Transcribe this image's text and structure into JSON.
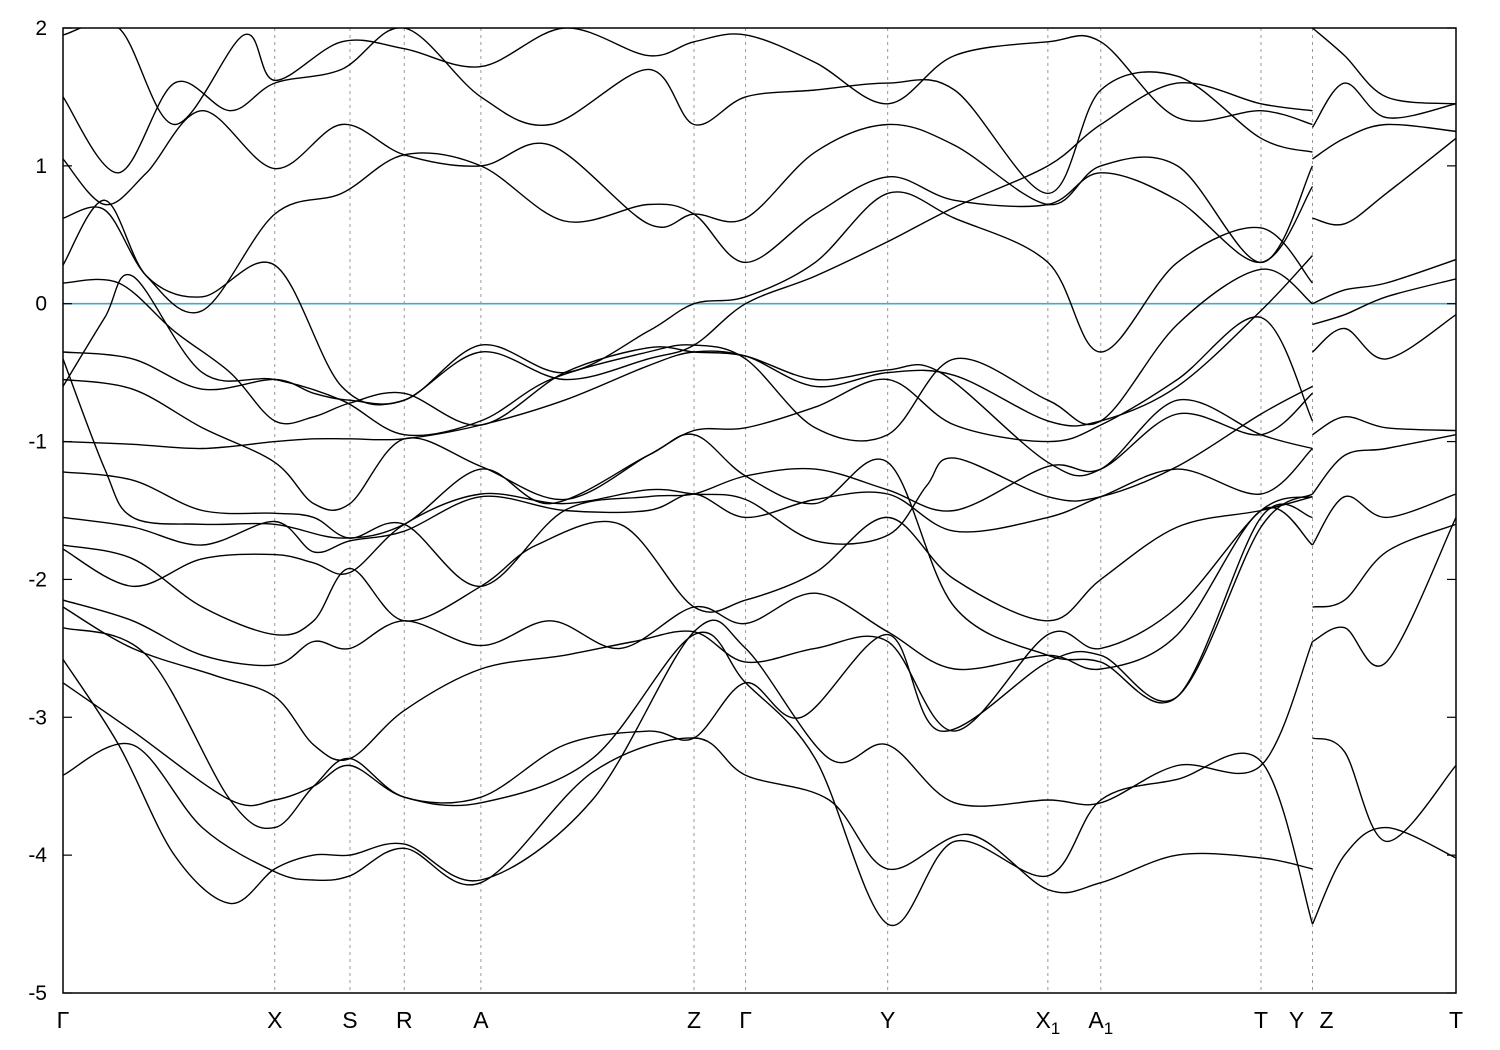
{
  "chart_data": {
    "type": "line",
    "title": "",
    "xlabel": "",
    "ylabel": "",
    "ylim": [
      -5,
      2
    ],
    "yticks": [
      -5,
      -4,
      -3,
      -2,
      -1,
      0,
      1,
      2
    ],
    "ytick_labels": [
      "-5",
      "-4",
      "-3",
      "-2",
      "-1",
      "0",
      "1",
      "2"
    ],
    "x_range": [
      0,
      1
    ],
    "high_symmetry_points": [
      {
        "label": "Γ",
        "sub": "",
        "x": 0.0,
        "line": false
      },
      {
        "label": "X",
        "sub": "",
        "x": 0.152,
        "line": true
      },
      {
        "label": "S",
        "sub": "",
        "x": 0.206,
        "line": true
      },
      {
        "label": "R",
        "sub": "",
        "x": 0.245,
        "line": true
      },
      {
        "label": "A",
        "sub": "",
        "x": 0.3,
        "line": true
      },
      {
        "label": "Z",
        "sub": "",
        "x": 0.453,
        "line": true
      },
      {
        "label": "Γ",
        "sub": "",
        "x": 0.49,
        "line": true
      },
      {
        "label": "Y",
        "sub": "",
        "x": 0.592,
        "line": true
      },
      {
        "label": "X",
        "sub": "1",
        "x": 0.707,
        "line": true
      },
      {
        "label": "A",
        "sub": "1",
        "x": 0.745,
        "line": true
      },
      {
        "label": "T",
        "sub": "",
        "x": 0.86,
        "line": true
      },
      {
        "label": "Y",
        "sub": "",
        "x": 0.897,
        "line": true
      },
      {
        "label": "Z",
        "sub": "",
        "x": 0.897,
        "line": false
      },
      {
        "label": "T",
        "sub": "",
        "x": 1.0,
        "line": false
      }
    ],
    "fermi_level": 0,
    "fermi_color": "#4aa8c0",
    "band_color": "#000000",
    "series": [
      {
        "x": [
          0.0,
          0.05,
          0.1,
          0.152,
          0.18,
          0.206,
          0.245,
          0.3,
          0.38,
          0.453,
          0.49,
          0.55,
          0.592,
          0.65,
          0.707,
          0.745,
          0.8,
          0.86,
          0.897
        ],
        "y": [
          -3.42,
          -3.2,
          -3.8,
          -4.12,
          -4.18,
          -4.15,
          -3.95,
          -4.2,
          -3.4,
          -3.15,
          -3.42,
          -3.6,
          -4.1,
          -3.85,
          -4.25,
          -4.2,
          -4.0,
          -4.02,
          -4.1
        ]
      },
      {
        "x": [
          0.0,
          0.05,
          0.12,
          0.152,
          0.18,
          0.206,
          0.245,
          0.3,
          0.38,
          0.453,
          0.49,
          0.54,
          0.592,
          0.64,
          0.707,
          0.745,
          0.8,
          0.86,
          0.897
        ],
        "y": [
          -2.75,
          -3.1,
          -3.6,
          -3.6,
          -3.5,
          -3.35,
          -3.58,
          -3.62,
          -3.3,
          -2.4,
          -2.75,
          -3.3,
          -4.5,
          -3.9,
          -4.15,
          -3.6,
          -3.45,
          -3.32,
          -4.5
        ]
      },
      {
        "x": [
          0.0,
          0.04,
          0.08,
          0.12,
          0.152,
          0.18,
          0.206,
          0.245,
          0.3,
          0.38,
          0.453,
          0.49,
          0.55,
          0.592,
          0.64,
          0.707,
          0.745,
          0.8,
          0.86,
          0.897
        ],
        "y": [
          -2.58,
          -3.2,
          -4.0,
          -4.35,
          -4.1,
          -4.0,
          -4.0,
          -3.92,
          -4.18,
          -3.6,
          -2.38,
          -2.5,
          -3.3,
          -3.2,
          -3.62,
          -3.6,
          -3.62,
          -3.35,
          -3.35,
          -2.45
        ]
      },
      {
        "x": [
          0.0,
          0.06,
          0.12,
          0.152,
          0.18,
          0.206,
          0.245,
          0.3,
          0.36,
          0.42,
          0.453,
          0.49,
          0.53,
          0.592,
          0.63,
          0.707,
          0.745,
          0.8,
          0.86,
          0.897
        ],
        "y": [
          -2.35,
          -2.55,
          -3.6,
          -3.8,
          -3.5,
          -3.3,
          -3.58,
          -3.58,
          -3.2,
          -3.1,
          -3.15,
          -2.75,
          -3.0,
          -2.4,
          -3.1,
          -2.6,
          -2.55,
          -2.85,
          -1.62,
          -1.38
        ]
      },
      {
        "x": [
          0.0,
          0.05,
          0.11,
          0.152,
          0.18,
          0.206,
          0.245,
          0.3,
          0.36,
          0.41,
          0.453,
          0.49,
          0.54,
          0.592,
          0.64,
          0.707,
          0.745,
          0.8,
          0.86,
          0.897
        ],
        "y": [
          -2.2,
          -2.5,
          -2.7,
          -2.85,
          -3.2,
          -3.3,
          -2.95,
          -2.65,
          -2.55,
          -2.45,
          -2.38,
          -2.6,
          -2.5,
          -2.45,
          -3.1,
          -2.4,
          -2.5,
          -2.2,
          -1.5,
          -1.4
        ]
      },
      {
        "x": [
          0.0,
          0.05,
          0.1,
          0.152,
          0.18,
          0.206,
          0.245,
          0.3,
          0.35,
          0.4,
          0.453,
          0.49,
          0.54,
          0.592,
          0.64,
          0.707,
          0.745,
          0.8,
          0.86,
          0.897
        ],
        "y": [
          -2.15,
          -2.3,
          -2.55,
          -2.62,
          -2.45,
          -2.5,
          -2.3,
          -2.48,
          -2.3,
          -2.5,
          -2.2,
          -2.32,
          -2.1,
          -2.38,
          -2.65,
          -2.55,
          -2.65,
          -2.4,
          -1.5,
          -1.75
        ]
      },
      {
        "x": [
          0.0,
          0.05,
          0.1,
          0.152,
          0.18,
          0.206,
          0.245,
          0.3,
          0.34,
          0.4,
          0.453,
          0.49,
          0.54,
          0.592,
          0.64,
          0.707,
          0.745,
          0.8,
          0.86,
          0.897
        ],
        "y": [
          -1.75,
          -1.85,
          -2.2,
          -2.4,
          -2.3,
          -1.92,
          -2.3,
          -2.05,
          -1.75,
          -1.6,
          -2.2,
          -2.15,
          -1.95,
          -1.55,
          -2.0,
          -2.3,
          -2.0,
          -1.62,
          -1.5,
          -1.4
        ]
      },
      {
        "x": [
          0.0,
          0.05,
          0.1,
          0.152,
          0.18,
          0.206,
          0.245,
          0.3,
          0.36,
          0.42,
          0.453,
          0.49,
          0.54,
          0.592,
          0.64,
          0.707,
          0.745,
          0.8,
          0.86,
          0.897
        ],
        "y": [
          -1.55,
          -1.62,
          -1.75,
          -1.58,
          -1.8,
          -1.72,
          -1.65,
          -1.4,
          -1.5,
          -1.5,
          -1.38,
          -1.55,
          -1.42,
          -1.38,
          -1.65,
          -1.55,
          -1.4,
          -1.2,
          -1.38,
          -1.05
        ]
      },
      {
        "x": [
          0.0,
          0.05,
          0.1,
          0.152,
          0.18,
          0.206,
          0.245,
          0.3,
          0.36,
          0.42,
          0.453,
          0.49,
          0.54,
          0.592,
          0.64,
          0.707,
          0.745,
          0.8,
          0.86,
          0.897
        ],
        "y": [
          -1.22,
          -1.28,
          -1.5,
          -1.52,
          -1.55,
          -1.7,
          -1.6,
          -2.05,
          -1.5,
          -1.4,
          -1.38,
          -1.25,
          -1.2,
          -1.35,
          -1.5,
          -1.18,
          -1.2,
          -0.8,
          -0.95,
          -0.65
        ]
      },
      {
        "x": [
          0.0,
          0.05,
          0.1,
          0.152,
          0.18,
          0.206,
          0.245,
          0.3,
          0.36,
          0.42,
          0.453,
          0.49,
          0.54,
          0.592,
          0.64,
          0.707,
          0.745,
          0.8,
          0.86,
          0.897
        ],
        "y": [
          -1.0,
          -1.02,
          -1.05,
          -1.0,
          -0.98,
          -0.98,
          -0.98,
          -0.88,
          -0.7,
          -0.45,
          -0.35,
          -0.38,
          -0.6,
          -0.5,
          -0.52,
          -0.85,
          -0.85,
          -0.6,
          -0.05,
          0.35
        ]
      },
      {
        "x": [
          0.0,
          0.05,
          0.1,
          0.152,
          0.18,
          0.206,
          0.245,
          0.3,
          0.36,
          0.42,
          0.453,
          0.49,
          0.54,
          0.592,
          0.64,
          0.707,
          0.745,
          0.8,
          0.86,
          0.897
        ],
        "y": [
          -0.55,
          -0.62,
          -0.9,
          -1.15,
          -1.45,
          -1.45,
          -0.98,
          -1.18,
          -1.42,
          -1.1,
          -0.92,
          -0.9,
          -0.75,
          -0.55,
          -0.88,
          -1.0,
          -0.88,
          -0.55,
          -0.1,
          -0.85
        ]
      },
      {
        "x": [
          0.0,
          0.05,
          0.1,
          0.152,
          0.18,
          0.206,
          0.245,
          0.3,
          0.36,
          0.42,
          0.453,
          0.49,
          0.54,
          0.592,
          0.64,
          0.707,
          0.745,
          0.8,
          0.86,
          0.897
        ],
        "y": [
          -0.35,
          -0.4,
          -0.62,
          -0.55,
          -0.65,
          -0.7,
          -0.7,
          -0.35,
          -0.55,
          -0.4,
          -0.3,
          0.0,
          0.2,
          0.45,
          0.7,
          1.0,
          1.3,
          1.6,
          1.45,
          1.4
        ]
      },
      {
        "x": [
          0.0,
          0.04,
          0.08,
          0.12,
          0.152,
          0.18,
          0.206,
          0.245,
          0.3,
          0.36,
          0.42,
          0.453,
          0.49,
          0.54,
          0.592,
          0.63,
          0.707,
          0.745,
          0.8,
          0.86,
          0.897
        ],
        "y": [
          0.15,
          0.15,
          -0.2,
          -0.5,
          -0.85,
          -0.82,
          -0.72,
          -0.65,
          -0.88,
          -0.5,
          -0.32,
          -0.35,
          -0.38,
          -0.55,
          -0.48,
          -0.5,
          -1.15,
          -1.2,
          -0.7,
          -0.95,
          -1.05
        ]
      },
      {
        "x": [
          0.0,
          0.03,
          0.06,
          0.1,
          0.152,
          0.2,
          0.245,
          0.3,
          0.36,
          0.42,
          0.453,
          0.49,
          0.54,
          0.592,
          0.64,
          0.707,
          0.745,
          0.8,
          0.86,
          0.897
        ],
        "y": [
          0.28,
          0.75,
          0.2,
          0.05,
          0.28,
          -0.6,
          -0.7,
          -0.3,
          -0.5,
          -0.2,
          0.0,
          0.05,
          0.3,
          0.8,
          0.62,
          0.3,
          -0.35,
          0.3,
          0.55,
          0.15
        ]
      },
      {
        "x": [
          0.0,
          0.03,
          0.06,
          0.1,
          0.152,
          0.2,
          0.245,
          0.3,
          0.36,
          0.42,
          0.453,
          0.49,
          0.54,
          0.592,
          0.64,
          0.707,
          0.745,
          0.8,
          0.86,
          0.897
        ],
        "y": [
          0.62,
          0.68,
          0.2,
          -0.05,
          0.65,
          0.8,
          1.08,
          1.0,
          0.6,
          0.72,
          0.65,
          0.3,
          0.65,
          0.92,
          0.75,
          0.72,
          0.95,
          0.75,
          0.3,
          0.85
        ]
      },
      {
        "x": [
          0.0,
          0.03,
          0.06,
          0.1,
          0.152,
          0.2,
          0.245,
          0.3,
          0.35,
          0.42,
          0.453,
          0.49,
          0.54,
          0.592,
          0.64,
          0.707,
          0.745,
          0.8,
          0.86,
          0.897
        ],
        "y": [
          1.05,
          0.72,
          0.95,
          1.4,
          0.98,
          1.3,
          1.08,
          1.0,
          1.15,
          0.58,
          0.65,
          0.62,
          1.1,
          1.3,
          1.15,
          0.72,
          1.0,
          1.0,
          0.3,
          1.0
        ]
      },
      {
        "x": [
          0.0,
          0.04,
          0.08,
          0.12,
          0.152,
          0.2,
          0.245,
          0.3,
          0.35,
          0.42,
          0.453,
          0.49,
          0.54,
          0.592,
          0.64,
          0.707,
          0.745,
          0.8,
          0.86,
          0.897
        ],
        "y": [
          1.5,
          0.95,
          1.6,
          1.4,
          1.6,
          1.7,
          2.0,
          1.5,
          1.3,
          1.7,
          1.3,
          1.5,
          1.55,
          1.6,
          1.55,
          0.8,
          1.55,
          1.65,
          1.2,
          1.1
        ]
      },
      {
        "x": [
          0.0,
          0.04,
          0.08,
          0.13,
          0.152,
          0.2,
          0.245,
          0.3,
          0.36,
          0.42,
          0.453,
          0.49,
          0.54,
          0.592,
          0.64,
          0.707,
          0.745,
          0.8,
          0.86,
          0.897
        ],
        "y": [
          1.95,
          2.0,
          1.3,
          1.95,
          1.62,
          1.9,
          1.85,
          1.72,
          2.0,
          1.8,
          1.9,
          1.95,
          1.75,
          1.45,
          1.8,
          1.9,
          1.9,
          1.35,
          1.4,
          1.3
        ]
      },
      {
        "x": [
          0.0,
          0.03,
          0.05,
          0.1,
          0.152,
          0.2,
          0.245,
          0.3,
          0.35,
          0.42,
          0.453,
          0.49,
          0.54,
          0.592,
          0.64,
          0.707,
          0.745,
          0.8,
          0.86,
          0.897
        ],
        "y": [
          -0.4,
          -1.2,
          -1.55,
          -1.6,
          -1.6,
          -1.7,
          -1.6,
          -1.2,
          -1.45,
          -1.1,
          -0.95,
          -1.25,
          -1.45,
          -1.15,
          -2.2,
          -2.55,
          -2.6,
          -2.85,
          -1.55,
          -1.55
        ]
      },
      {
        "x": [
          0.0,
          0.03,
          0.05,
          0.1,
          0.152,
          0.2,
          0.245,
          0.3,
          0.35,
          0.42,
          0.453,
          0.49,
          0.54,
          0.592,
          0.64,
          0.707,
          0.745,
          0.8,
          0.86,
          0.897
        ],
        "y": [
          -0.6,
          -0.1,
          0.2,
          -0.5,
          -0.55,
          -0.7,
          -0.95,
          -0.85,
          -0.55,
          -0.35,
          -0.3,
          -0.4,
          -0.9,
          -0.95,
          -0.4,
          -0.7,
          -0.85,
          -0.15,
          0.25,
          0.0
        ]
      },
      {
        "x": [
          0.0,
          0.05,
          0.1,
          0.152,
          0.18,
          0.206,
          0.245,
          0.3,
          0.36,
          0.42,
          0.453,
          0.49,
          0.54,
          0.592,
          0.62,
          0.64,
          0.707,
          0.745,
          0.8,
          0.86,
          0.897
        ],
        "y": [
          -1.78,
          -2.05,
          -1.85,
          -1.82,
          -1.88,
          -1.95,
          -1.6,
          -1.38,
          -1.45,
          -1.35,
          -1.38,
          -1.42,
          -1.72,
          -1.68,
          -1.32,
          -1.12,
          -1.4,
          -1.4,
          -1.18,
          -0.8,
          -0.6
        ]
      },
      {
        "x": [
          0.897,
          0.92,
          0.95,
          1.0
        ],
        "y": [
          -4.5,
          -4.0,
          -3.8,
          -4.02
        ]
      },
      {
        "x": [
          0.897,
          0.92,
          0.95,
          1.0
        ],
        "y": [
          -3.15,
          -3.25,
          -3.9,
          -3.35
        ]
      },
      {
        "x": [
          0.897,
          0.92,
          0.95,
          1.0
        ],
        "y": [
          -2.45,
          -2.35,
          -2.6,
          -1.55
        ]
      },
      {
        "x": [
          0.897,
          0.92,
          0.95,
          1.0
        ],
        "y": [
          -2.2,
          -2.15,
          -1.8,
          -1.6
        ]
      },
      {
        "x": [
          0.897,
          0.92,
          0.95,
          1.0
        ],
        "y": [
          -1.75,
          -1.4,
          -1.55,
          -1.38
        ]
      },
      {
        "x": [
          0.897,
          0.92,
          0.95,
          1.0
        ],
        "y": [
          -1.38,
          -1.1,
          -1.05,
          -0.95
        ]
      },
      {
        "x": [
          0.897,
          0.92,
          0.95,
          1.0
        ],
        "y": [
          -0.95,
          -0.82,
          -0.9,
          -0.92
        ]
      },
      {
        "x": [
          0.897,
          0.92,
          0.95,
          1.0
        ],
        "y": [
          -0.35,
          -0.18,
          -0.4,
          -0.08
        ]
      },
      {
        "x": [
          0.897,
          0.92,
          0.95,
          1.0
        ],
        "y": [
          -0.15,
          -0.08,
          0.05,
          0.18
        ]
      },
      {
        "x": [
          0.897,
          0.92,
          0.95,
          1.0
        ],
        "y": [
          0.0,
          0.1,
          0.15,
          0.32
        ]
      },
      {
        "x": [
          0.897,
          0.92,
          0.95,
          1.0
        ],
        "y": [
          0.62,
          0.58,
          0.8,
          1.2
        ]
      },
      {
        "x": [
          0.897,
          0.92,
          0.95,
          1.0
        ],
        "y": [
          1.05,
          1.2,
          1.3,
          1.25
        ]
      },
      {
        "x": [
          0.897,
          0.92,
          0.95,
          1.0
        ],
        "y": [
          1.28,
          1.6,
          1.35,
          1.45
        ]
      },
      {
        "x": [
          0.897,
          0.92,
          0.95,
          1.0
        ],
        "y": [
          2.0,
          1.8,
          1.5,
          1.45
        ]
      }
    ]
  }
}
